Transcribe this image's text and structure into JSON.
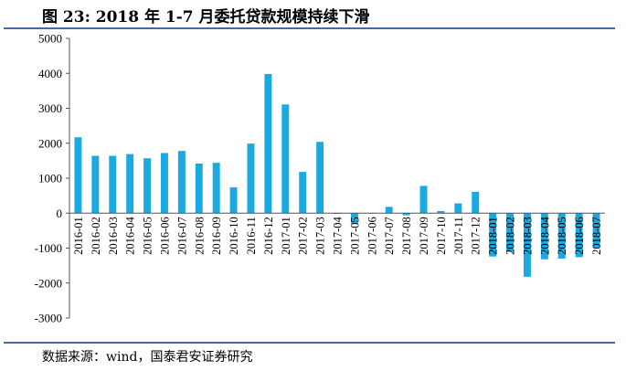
{
  "header": {
    "title": "图 23:  2018 年 1-7 月委托贷款规模持续下滑"
  },
  "footer": {
    "source": "数据来源：wind，国泰君安证券研究"
  },
  "colors": {
    "bar": "#1aa9e1",
    "axis": "#555555",
    "rule": "#4a6a9a"
  },
  "chart_data": {
    "type": "bar",
    "title": "",
    "xlabel": "",
    "ylabel": "",
    "ylim": [
      -3000,
      5000
    ],
    "yticks": [
      5000,
      4000,
      3000,
      2000,
      1000,
      0,
      -1000,
      -2000,
      -3000
    ],
    "grid": false,
    "categories": [
      "2016-01",
      "2016-02",
      "2016-03",
      "2016-04",
      "2016-05",
      "2016-06",
      "2016-07",
      "2016-08",
      "2016-09",
      "2016-10",
      "2016-11",
      "2016-12",
      "2017-01",
      "2017-02",
      "2017-03",
      "2017-04",
      "2017-05",
      "2017-06",
      "2017-07",
      "2017-08",
      "2017-09",
      "2017-10",
      "2017-11",
      "2017-12",
      "2018-01",
      "2018-02",
      "2018-03",
      "2018-04",
      "2018-05",
      "2018-06",
      "2018-07"
    ],
    "values": [
      2170,
      1640,
      1640,
      1690,
      1570,
      1720,
      1780,
      1420,
      1440,
      740,
      1990,
      3980,
      3110,
      1180,
      2040,
      -20,
      -300,
      -10,
      180,
      -60,
      780,
      60,
      280,
      610,
      -1240,
      -1110,
      -1820,
      -1320,
      -1300,
      -1260,
      -980
    ]
  }
}
